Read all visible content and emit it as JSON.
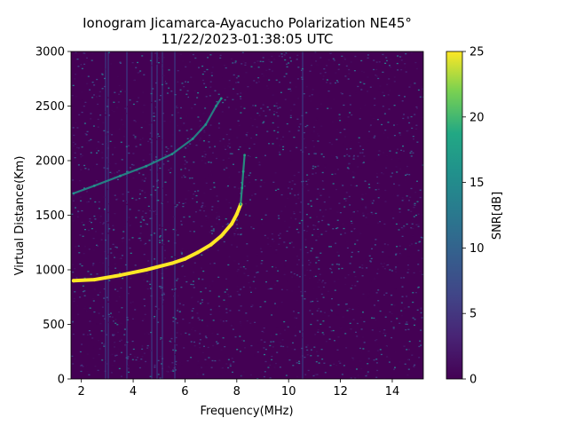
{
  "chart_data": {
    "type": "heatmap",
    "title_line1": "Ionogram Jicamarca-Ayacucho Polarization NE45°",
    "title_line2": "11/22/2023-01:38:05 UTC",
    "xlabel": "Frequency(MHz)",
    "ylabel": "Virtual Distance(Km)",
    "xlim": [
      1.6,
      15.2
    ],
    "ylim": [
      0,
      3000
    ],
    "x_ticks": [
      2,
      4,
      6,
      8,
      10,
      12,
      14
    ],
    "y_ticks": [
      0,
      500,
      1000,
      1500,
      2000,
      2500,
      3000
    ],
    "colorbar": {
      "label": "SNR[dB]",
      "range": [
        0,
        25
      ],
      "ticks": [
        0,
        5,
        10,
        15,
        20,
        25
      ],
      "colormap": "viridis"
    },
    "traces": [
      {
        "name": "",
        "snr": 25,
        "points": [
          [
            1.7,
            900
          ],
          [
            2.5,
            910
          ],
          [
            3.5,
            950
          ],
          [
            4.5,
            1000
          ],
          [
            5.5,
            1060
          ],
          [
            6.0,
            1100
          ],
          [
            6.5,
            1160
          ],
          [
            7.0,
            1230
          ],
          [
            7.4,
            1310
          ],
          [
            7.8,
            1420
          ],
          [
            8.0,
            1510
          ],
          [
            8.15,
            1600
          ]
        ]
      },
      {
        "name": "",
        "snr": 18,
        "points": [
          [
            8.15,
            1600
          ],
          [
            8.2,
            1750
          ],
          [
            8.25,
            1900
          ],
          [
            8.3,
            2050
          ]
        ]
      },
      {
        "name": "",
        "snr": 16,
        "points": [
          [
            1.7,
            1700
          ],
          [
            2.5,
            1770
          ],
          [
            3.5,
            1860
          ],
          [
            4.5,
            1950
          ],
          [
            5.5,
            2060
          ],
          [
            6.3,
            2200
          ],
          [
            6.8,
            2330
          ],
          [
            7.2,
            2500
          ],
          [
            7.4,
            2570
          ]
        ]
      }
    ]
  }
}
